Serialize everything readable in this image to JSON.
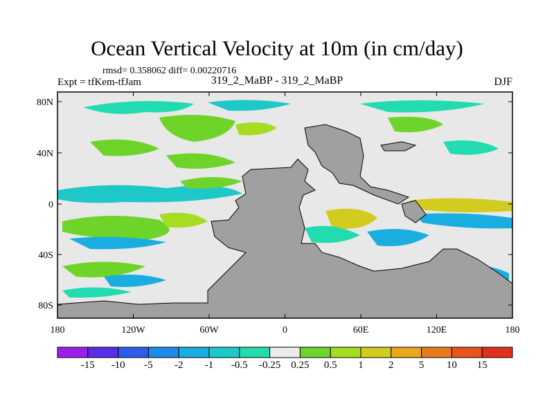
{
  "title": "Ocean Vertical Velocity at 10m (in cm/day)",
  "stats": "rmsd= 0.358062 diff= 0.00220716",
  "experiment": "Expt = tfKem-tfJam",
  "runs": "319_2_MaBP - 319_2_MaBP",
  "season": "DJF",
  "map": {
    "lat_ticks": [
      "80N",
      "40N",
      "0",
      "40S",
      "80S"
    ],
    "lon_ticks": [
      "180",
      "120W",
      "60W",
      "0",
      "60E",
      "120E",
      "180"
    ],
    "land_color": "#a0a0a0",
    "zero_color": "#e8e8e8"
  },
  "colorbar": {
    "labels": [
      "-15",
      "-10",
      "-5",
      "-2",
      "-1",
      "-0.5",
      "-0.25",
      "0.25",
      "0.5",
      "1",
      "2",
      "5",
      "10",
      "15"
    ],
    "colors": [
      "#9b1fe8",
      "#5a2ee8",
      "#2c5ce8",
      "#1e8ae8",
      "#1aaee0",
      "#1ec8c8",
      "#22dcb0",
      "#ececec",
      "#6ed42a",
      "#a6dc22",
      "#d2cc1e",
      "#e8a81e",
      "#e87a1e",
      "#e8521e",
      "#e0301e"
    ]
  }
}
